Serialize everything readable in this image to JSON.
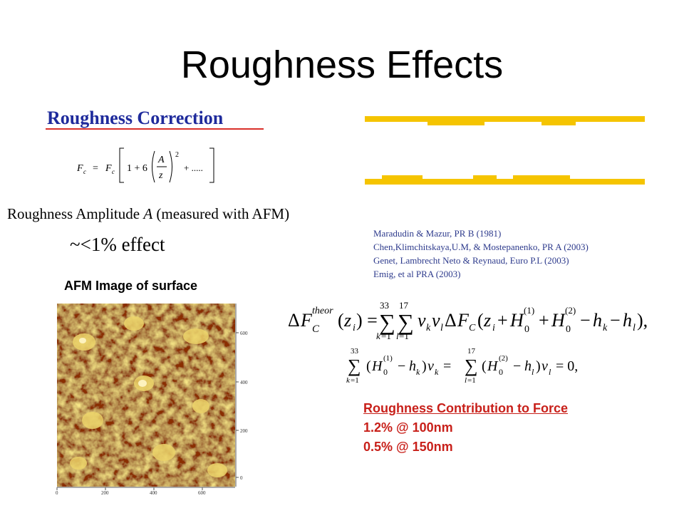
{
  "slide": {
    "title": "Roughness Effects",
    "subtitle": "Roughness Correction",
    "amplitude_label": {
      "prefix": "Roughness Amplitude ",
      "symbol": "A",
      "suffix": " (measured with AFM)"
    },
    "effect": "~<1%  effect",
    "afm_caption": "AFM Image of surface",
    "references": [
      "Maradudin & Mazur, PR B (1981)",
      "Chen,Klimchitskaya,U.M, & Mostepanenko, PR A (2003)",
      "Genet, Lambrecht  Neto & Reynaud, Euro P.L  (2003)",
      "Emig, et al PRA (2003)"
    ],
    "contribution": {
      "title": "Roughness Contribution to Force",
      "lines": [
        "1.2% @ 100nm",
        "0.5% @ 150nm"
      ]
    },
    "afm_axis": {
      "x_ticks": [
        "0",
        "200",
        "400",
        "600"
      ],
      "y_ticks": [
        "0",
        "200",
        "400",
        "600"
      ]
    },
    "colors": {
      "title_text": "#000000",
      "subtitle_text": "#1f2b9c",
      "subtitle_underline": "#d9302a",
      "references_text": "#2d3a8c",
      "contribution_text": "#c8201a",
      "rough_profile": "#f5c400"
    }
  }
}
